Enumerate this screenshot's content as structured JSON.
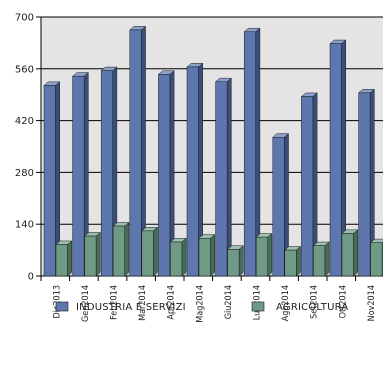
{
  "chart_data": {
    "type": "bar",
    "categories": [
      "Dic2013",
      "Gen2014",
      "Feb2014",
      "Mar2014",
      "Apr2014",
      "Mag2014",
      "Giu2014",
      "Lug2014",
      "Ago2014",
      "Set2014",
      "Ott2014",
      "Nov2014"
    ],
    "series": [
      {
        "name": "INDUSTRIA E SERVIZI",
        "values": [
          515,
          540,
          555,
          665,
          545,
          565,
          525,
          660,
          375,
          485,
          628,
          495
        ]
      },
      {
        "name": "AGRICOLTURA",
        "values": [
          85,
          108,
          135,
          122,
          92,
          102,
          72,
          105,
          70,
          82,
          115,
          90
        ]
      }
    ],
    "yticks": [
      "0",
      "140",
      "280",
      "420",
      "560",
      "700"
    ],
    "ylim": [
      0,
      700
    ],
    "grid": true,
    "legend_position": "bottom",
    "colors": {
      "series1_front": "#5d76ad",
      "series1_side": "#3a4e7c",
      "series1_top": "#8ca0cc",
      "series2_front": "#6e9a86",
      "series2_side": "#466c5b",
      "series2_top": "#9cc0af",
      "plot_background": "#e4e4e4"
    }
  }
}
